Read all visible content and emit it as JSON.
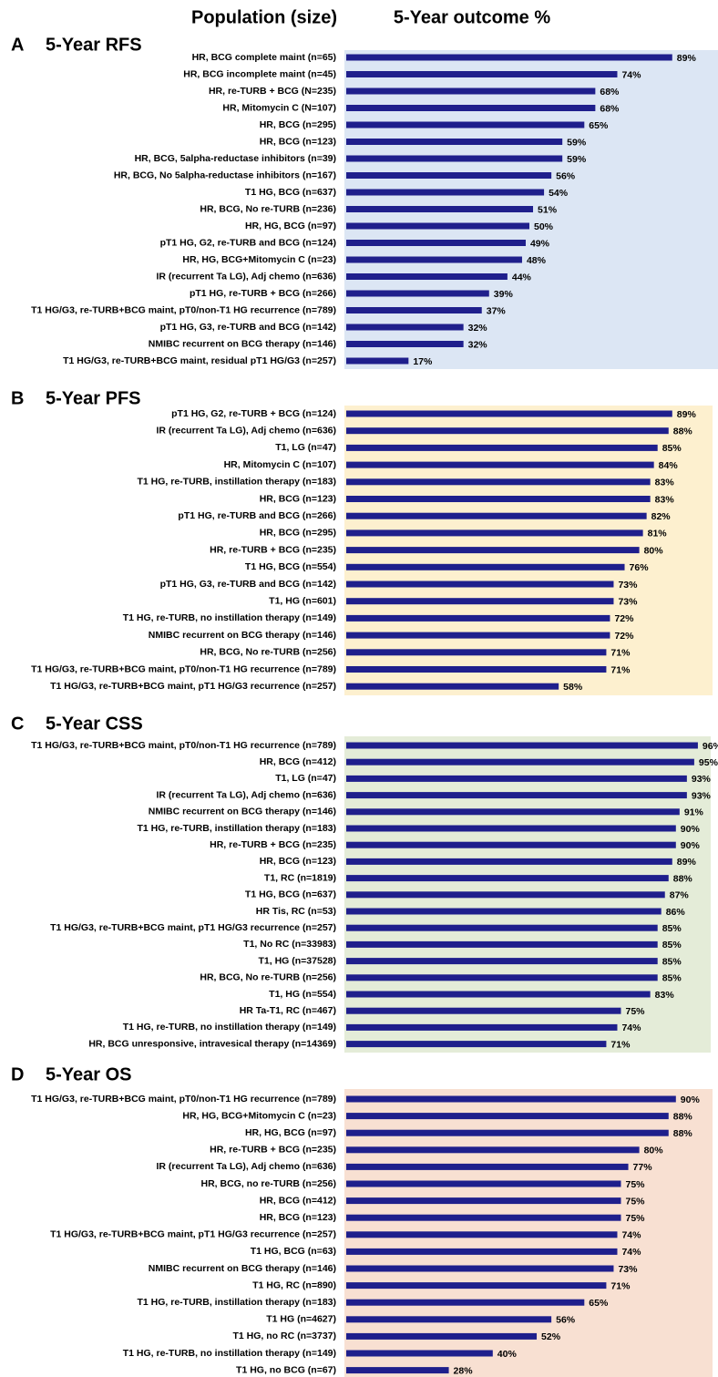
{
  "header": {
    "population": "Population (size)",
    "outcome": "5-Year outcome %"
  },
  "chart_data": [
    {
      "type": "bar",
      "orientation": "horizontal",
      "panel": "A",
      "title": "5-Year RFS",
      "color": "#1f1f8c",
      "background": "#dce6f4",
      "xlim": [
        0,
        100
      ],
      "categories": [
        "HR, BCG complete maint (n=65)",
        "HR, BCG incomplete maint (n=45)",
        "HR, re-TURB + BCG (N=235)",
        "HR, Mitomycin C (N=107)",
        "HR, BCG (n=295)",
        "HR, BCG (n=123)",
        "HR, BCG, 5alpha-reductase inhibitors (n=39)",
        "HR, BCG, No 5alpha-reductase inhibitors (n=167)",
        "T1 HG, BCG (n=637)",
        "HR, BCG, No re-TURB (n=236)",
        "HR, HG, BCG (n=97)",
        "pT1 HG, G2, re-TURB and BCG (n=124)",
        "HR, HG, BCG+Mitomycin C (n=23)",
        "IR (recurrent Ta LG), Adj chemo (n=636)",
        "pT1 HG, re-TURB + BCG (n=266)",
        "T1 HG/G3, re-TURB+BCG maint, pT0/non-T1 HG recurrence (n=789)",
        "pT1 HG, G3, re-TURB and BCG (n=142)",
        "NMIBC recurrent on BCG therapy (n=146)",
        "T1 HG/G3, re-TURB+BCG maint, residual pT1 HG/G3 (n=257)"
      ],
      "values": [
        89,
        74,
        68,
        68,
        65,
        59,
        59,
        56,
        54,
        51,
        50,
        49,
        48,
        44,
        39,
        37,
        32,
        32,
        17
      ],
      "value_labels": [
        "89%",
        "74%",
        "68%",
        "68%",
        "65%",
        "59%",
        "59%",
        "56%",
        "54%",
        "51%",
        "50%",
        "49%",
        "48%",
        "44%",
        "39%",
        "37%",
        "32%",
        "32%",
        "17%"
      ]
    },
    {
      "type": "bar",
      "orientation": "horizontal",
      "panel": "B",
      "title": "5-Year PFS",
      "color": "#1f1f8c",
      "background": "#fdf0cf",
      "xlim": [
        0,
        100
      ],
      "categories": [
        "pT1 HG, G2, re-TURB + BCG (n=124)",
        "IR (recurrent Ta LG), Adj chemo (n=636)",
        "T1, LG (n=47)",
        "HR, Mitomycin C (n=107)",
        "T1 HG, re-TURB, instillation therapy (n=183)",
        "HR, BCG (n=123)",
        "pT1 HG, re-TURB and BCG (n=266)",
        "HR, BCG (n=295)",
        "HR, re-TURB + BCG (n=235)",
        "T1 HG, BCG (n=554)",
        "pT1 HG, G3, re-TURB and BCG (n=142)",
        "T1, HG (n=601)",
        "T1 HG, re-TURB, no instillation therapy (n=149)",
        "NMIBC recurrent on BCG therapy (n=146)",
        "HR, BCG, No re-TURB (n=256)",
        "T1 HG/G3, re-TURB+BCG maint, pT0/non-T1 HG recurrence (n=789)",
        "T1 HG/G3, re-TURB+BCG maint, pT1 HG/G3 recurrence (n=257)"
      ],
      "values": [
        89,
        88,
        85,
        84,
        83,
        83,
        82,
        81,
        80,
        76,
        73,
        73,
        72,
        72,
        71,
        71,
        58
      ],
      "value_labels": [
        "89%",
        "88%",
        "85%",
        "84%",
        "83%",
        "83%",
        "82%",
        "81%",
        "80%",
        "76%",
        "73%",
        "73%",
        "72%",
        "72%",
        "71%",
        "71%",
        "58%"
      ]
    },
    {
      "type": "bar",
      "orientation": "horizontal",
      "panel": "C",
      "title": "5-Year CSS",
      "color": "#1f1f8c",
      "background": "#e4ecd8",
      "xlim": [
        0,
        100
      ],
      "categories": [
        "T1 HG/G3, re-TURB+BCG maint, pT0/non-T1 HG recurrence (n=789)",
        "HR, BCG (n=412)",
        "T1, LG (n=47)",
        "IR (recurrent Ta LG), Adj chemo (n=636)",
        "NMIBC recurrent on BCG therapy (n=146)",
        "T1 HG, re-TURB, instillation therapy (n=183)",
        "HR, re-TURB + BCG (n=235)",
        "HR, BCG (n=123)",
        "T1, RC (n=1819)",
        "T1 HG, BCG (n=637)",
        "HR Tis, RC (n=53)",
        "T1 HG/G3, re-TURB+BCG maint, pT1 HG/G3 recurrence (n=257)",
        "T1, No RC (n=33983)",
        "T1, HG (n=37528)",
        "HR, BCG, No re-TURB (n=256)",
        "T1, HG (n=554)",
        "HR Ta-T1, RC (n=467)",
        "T1 HG, re-TURB, no instillation therapy (n=149)",
        "HR, BCG unresponsive, intravesical therapy (n=14369)"
      ],
      "values": [
        96,
        95,
        93,
        93,
        91,
        90,
        90,
        89,
        88,
        87,
        86,
        85,
        85,
        85,
        85,
        83,
        75,
        74,
        71
      ],
      "value_labels": [
        "96%",
        "95%",
        "93%",
        "93%",
        "91%",
        "90%",
        "90%",
        "89%",
        "88%",
        "87%",
        "86%",
        "85%",
        "85%",
        "85%",
        "85%",
        "83%",
        "75%",
        "74%",
        "71%"
      ]
    },
    {
      "type": "bar",
      "orientation": "horizontal",
      "panel": "D",
      "title": "5-Year OS",
      "color": "#1f1f8c",
      "background": "#f8e0d2",
      "xlim": [
        0,
        100
      ],
      "categories": [
        "T1 HG/G3, re-TURB+BCG maint, pT0/non-T1 HG recurrence (n=789)",
        "HR, HG, BCG+Mitomycin C (n=23)",
        "HR, HG, BCG (n=97)",
        "HR, re-TURB + BCG (n=235)",
        "IR (recurrent Ta LG), Adj chemo (n=636)",
        "HR, BCG, no re-TURB (n=256)",
        "HR, BCG (n=412)",
        "HR, BCG (n=123)",
        "T1 HG/G3, re-TURB+BCG maint, pT1 HG/G3 recurrence (n=257)",
        "T1 HG, BCG (n=63)",
        "NMIBC recurrent on BCG therapy (n=146)",
        "T1 HG, RC (n=890)",
        "T1 HG, re-TURB, instillation therapy (n=183)",
        "T1 HG (n=4627)",
        "T1 HG, no RC (n=3737)",
        "T1 HG, re-TURB, no instillation therapy (n=149)",
        "T1 HG, no BCG (n=67)"
      ],
      "values": [
        90,
        88,
        88,
        80,
        77,
        75,
        75,
        75,
        74,
        74,
        73,
        71,
        65,
        56,
        52,
        40,
        28
      ],
      "value_labels": [
        "90%",
        "88%",
        "88%",
        "80%",
        "77%",
        "75%",
        "75%",
        "75%",
        "74%",
        "74%",
        "73%",
        "71%",
        "65%",
        "56%",
        "52%",
        "40%",
        "28%"
      ]
    }
  ]
}
